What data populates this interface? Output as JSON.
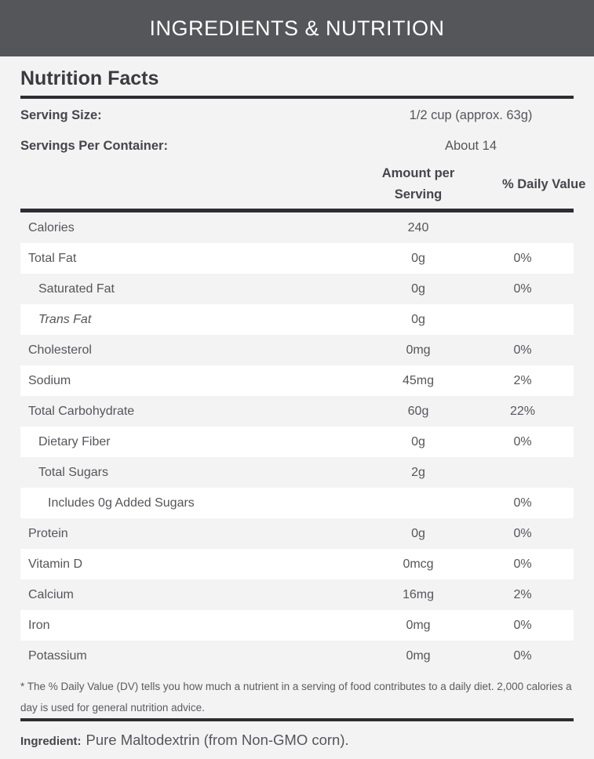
{
  "header": {
    "title": "INGREDIENTS & NUTRITION"
  },
  "panel": {
    "title": "Nutrition Facts",
    "serving_rows": [
      {
        "label": "Serving Size:",
        "value": "1/2 cup (approx. 63g)"
      },
      {
        "label": "Servings Per Container:",
        "value": "About 14"
      }
    ],
    "columns": {
      "amount": "Amount per Serving",
      "percent": "% Daily Value"
    },
    "rows": [
      {
        "name": "Calories",
        "amount": "240",
        "percent": "",
        "indent": 0,
        "italic": false
      },
      {
        "name": "Total Fat",
        "amount": "0g",
        "percent": "0%",
        "indent": 0,
        "italic": false
      },
      {
        "name": "Saturated Fat",
        "amount": "0g",
        "percent": "0%",
        "indent": 1,
        "italic": false
      },
      {
        "name": "Trans Fat",
        "amount": "0g",
        "percent": "",
        "indent": 1,
        "italic": true
      },
      {
        "name": "Cholesterol",
        "amount": "0mg",
        "percent": "0%",
        "indent": 0,
        "italic": false
      },
      {
        "name": "Sodium",
        "amount": "45mg",
        "percent": "2%",
        "indent": 0,
        "italic": false
      },
      {
        "name": "Total Carbohydrate",
        "amount": "60g",
        "percent": "22%",
        "indent": 0,
        "italic": false
      },
      {
        "name": "Dietary Fiber",
        "amount": "0g",
        "percent": "0%",
        "indent": 1,
        "italic": false
      },
      {
        "name": "Total Sugars",
        "amount": "2g",
        "percent": "",
        "indent": 1,
        "italic": false
      },
      {
        "name": "Includes 0g Added Sugars",
        "amount": "",
        "percent": "0%",
        "indent": 2,
        "italic": false
      },
      {
        "name": "Protein",
        "amount": "0g",
        "percent": "0%",
        "indent": 0,
        "italic": false
      },
      {
        "name": "Vitamin D",
        "amount": "0mcg",
        "percent": "0%",
        "indent": 0,
        "italic": false
      },
      {
        "name": "Calcium",
        "amount": "16mg",
        "percent": "2%",
        "indent": 0,
        "italic": false
      },
      {
        "name": "Iron",
        "amount": "0mg",
        "percent": "0%",
        "indent": 0,
        "italic": false
      },
      {
        "name": "Potassium",
        "amount": "0mg",
        "percent": "0%",
        "indent": 0,
        "italic": false
      }
    ],
    "footnote": "* The % Daily Value (DV) tells you how much a nutrient in a serving of food contributes to a daily diet. 2,000 calories a day is used for general nutrition advice.",
    "ingredient_label": "Ingredient:",
    "ingredient_value": "Pure Maltodextrin (from Non-GMO corn)."
  },
  "colors": {
    "header_bg": "#54565a",
    "page_bg": "#f3f3f4",
    "row_alt": "#ffffff",
    "rule": "#2d2e32",
    "text": "#55565a"
  }
}
